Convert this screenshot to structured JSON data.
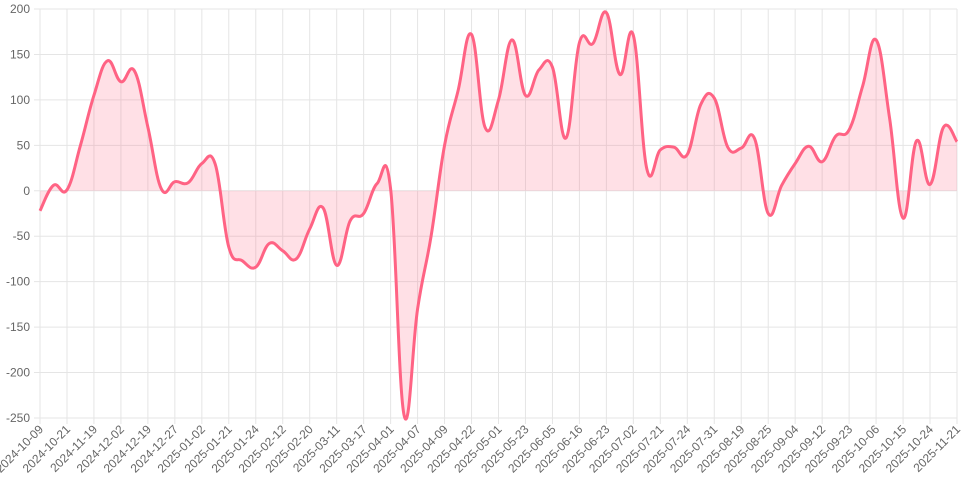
{
  "chart_data": {
    "type": "line",
    "categories": [
      "2024-10-09",
      null,
      "2024-10-21",
      null,
      "2024-11-19",
      null,
      "2024-12-02",
      null,
      "2024-12-19",
      null,
      "2024-12-27",
      null,
      "2025-01-02",
      null,
      "2025-01-21",
      null,
      "2025-01-24",
      null,
      "2025-02-12",
      null,
      "2025-02-20",
      null,
      "2025-03-11",
      null,
      "2025-03-17",
      null,
      "2025-04-01",
      null,
      "2025-04-07",
      null,
      "2025-04-09",
      null,
      "2025-04-22",
      null,
      "2025-05-01",
      null,
      "2025-05-23",
      null,
      "2025-06-05",
      null,
      "2025-06-16",
      null,
      "2025-06-23",
      null,
      "2025-07-02",
      null,
      "2025-07-21",
      null,
      "2025-07-24",
      null,
      "2025-07-31",
      null,
      "2025-08-19",
      null,
      "2025-08-25",
      null,
      "2025-09-04",
      null,
      "2025-09-12",
      null,
      "2025-09-23",
      null,
      "2025-10-06",
      null,
      "2025-10-15",
      null,
      "2025-10-24",
      null,
      "2025-11-21"
    ],
    "values": [
      -22,
      6,
      1,
      50,
      105,
      143,
      120,
      132,
      70,
      2,
      10,
      9,
      30,
      29,
      -62,
      -77,
      -84,
      -58,
      -66,
      -75,
      -42,
      -19,
      -82,
      -33,
      -25,
      8,
      2,
      -247,
      -130,
      -50,
      50,
      110,
      172,
      70,
      100,
      166,
      105,
      133,
      136,
      58,
      163,
      162,
      196,
      128,
      171,
      24,
      45,
      48,
      40,
      95,
      102,
      48,
      47,
      57,
      -25,
      6,
      30,
      49,
      32,
      60,
      67,
      115,
      166,
      80,
      -30,
      55,
      7,
      70,
      54
    ],
    "color": "#ff6384",
    "fill": "rgba(255, 99, 132, 0.2)",
    "ylim": [
      -250,
      200
    ],
    "yticks": [
      -250,
      -200,
      -150,
      -100,
      -50,
      0,
      50,
      100,
      150,
      200
    ],
    "grid": true
  }
}
